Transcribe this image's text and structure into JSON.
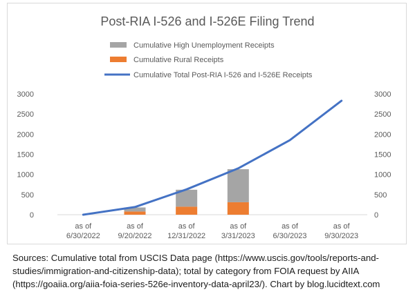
{
  "chart_data": {
    "type": "bar",
    "title": "Post-RIA I-526 and I-526E Filing Trend",
    "categories": [
      "as of\n6/30/2022",
      "as of\n9/20/2022",
      "as of\n12/31/2022",
      "as of\n3/31/2023",
      "as of\n6/30/2023",
      "as of\n9/30/2023"
    ],
    "series": [
      {
        "name": "Cumulative High Unemployment Receipts",
        "kind": "stacked-bar",
        "color": "#a5a5a5",
        "values": [
          null,
          100,
          420,
          820,
          null,
          null
        ]
      },
      {
        "name": "Cumulative Rural Receipts",
        "kind": "stacked-bar",
        "color": "#ed7d31",
        "values": [
          null,
          80,
          200,
          310,
          null,
          null
        ]
      },
      {
        "name": "Cumulative Total Post-RIA I-526 and I-526E Receipts",
        "kind": "line",
        "color": "#4472c4",
        "values": [
          0,
          190,
          630,
          1150,
          1850,
          2830
        ]
      }
    ],
    "y_left": {
      "min": 0,
      "max": 3000,
      "ticks": [
        0,
        500,
        1000,
        1500,
        2000,
        2500,
        3000
      ]
    },
    "y_right": {
      "min": 0,
      "max": 3000,
      "ticks": [
        0,
        500,
        1000,
        1500,
        2000,
        2500,
        3000
      ]
    },
    "grid": false,
    "legend_position": "top"
  },
  "sources_text": "Sources: Cumulative total from USCIS Data page (https://www.uscis.gov/tools/reports-and-studies/immigration-and-citizenship-data); total by category from FOIA request by AIIA (https://goaiia.org/aiia-foia-series-526e-inventory-data-april23/). Chart by blog.lucidtext.com"
}
